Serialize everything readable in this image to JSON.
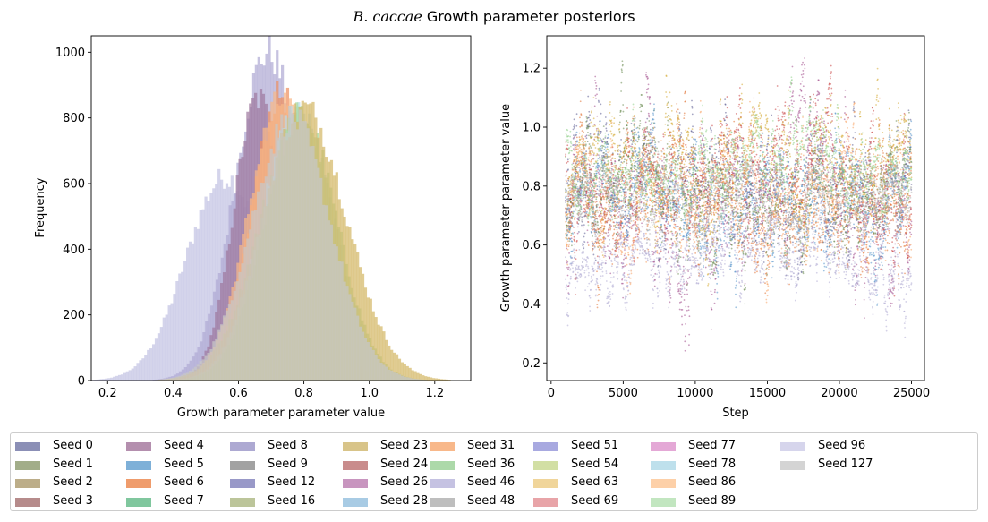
{
  "figure": {
    "title_italic": "B. caccae",
    "title_rest": " Growth parameter posteriors"
  },
  "chart_data": [
    {
      "type": "histogram",
      "xlabel": "Growth parameter parameter value",
      "ylabel": "Frequency",
      "xlim": [
        0.15,
        1.31
      ],
      "ylim": [
        0,
        1050
      ],
      "xticks": [
        "0.2",
        "0.4",
        "0.6",
        "0.8",
        "1.0",
        "1.2"
      ],
      "yticks": [
        "0",
        "200",
        "400",
        "600",
        "800",
        "1000"
      ],
      "grid": false,
      "series": [
        {
          "seed": "Seed 96",
          "color": "#c3c3e3",
          "mean": 0.56,
          "sd": 0.12,
          "peak": 620
        },
        {
          "seed": "Seed 46",
          "color": "#b0abd4",
          "mean": 0.69,
          "sd": 0.1,
          "peak": 1000
        },
        {
          "seed": "Seed 4",
          "color": "#a07aa0",
          "mean": 0.66,
          "sd": 0.075,
          "peak": 860
        },
        {
          "seed": "Seed 6",
          "color": "#ee9060",
          "mean": 0.73,
          "sd": 0.09,
          "peak": 870
        },
        {
          "seed": "Seed 31",
          "color": "#f8b888",
          "mean": 0.73,
          "sd": 0.1,
          "peak": 850
        },
        {
          "seed": "Seed 78",
          "color": "#b8dcea",
          "mean": 0.78,
          "sd": 0.11,
          "peak": 820
        },
        {
          "seed": "Seed 36",
          "color": "#a4d8a0",
          "mean": 0.79,
          "sd": 0.11,
          "peak": 810
        },
        {
          "seed": "Seed 23",
          "color": "#d4b868",
          "mean": 0.8,
          "sd": 0.13,
          "peak": 830
        },
        {
          "seed": "Seed 127",
          "color": "#c8c8c8",
          "mean": 0.76,
          "sd": 0.12,
          "peak": 800
        }
      ]
    },
    {
      "type": "scatter",
      "xlabel": "Step",
      "ylabel": "Growth parameter parameter value",
      "xlim": [
        -300,
        25900
      ],
      "ylim": [
        0.14,
        1.31
      ],
      "xticks": [
        "0",
        "5000",
        "10000",
        "15000",
        "20000",
        "25000"
      ],
      "yticks": [
        "0.2",
        "0.4",
        "0.6",
        "0.8",
        "1.0",
        "1.2"
      ],
      "grid": false,
      "step_range": [
        1000,
        25000
      ],
      "series": [
        {
          "seed": "Seed 0",
          "color": "#5a5a90",
          "mean": 0.78,
          "sd": 0.12
        },
        {
          "seed": "Seed 4",
          "color": "#a04a8a",
          "mean": 0.72,
          "sd": 0.15
        },
        {
          "seed": "Seed 24",
          "color": "#c84040",
          "mean": 0.82,
          "sd": 0.13
        },
        {
          "seed": "Seed 63",
          "color": "#d4a830",
          "mean": 0.85,
          "sd": 0.12
        },
        {
          "seed": "Seed 6",
          "color": "#e07030",
          "mean": 0.75,
          "sd": 0.13
        },
        {
          "seed": "Seed 1",
          "color": "#6a8a50",
          "mean": 0.76,
          "sd": 0.12
        },
        {
          "seed": "Seed 5",
          "color": "#5090c8",
          "mean": 0.75,
          "sd": 0.11
        },
        {
          "seed": "Seed 31",
          "color": "#f8a060",
          "mean": 0.74,
          "sd": 0.12
        },
        {
          "seed": "Seed 36",
          "color": "#90d088",
          "mean": 0.86,
          "sd": 0.08
        },
        {
          "seed": "Seed 46",
          "color": "#b0abd4",
          "mean": 0.55,
          "sd": 0.08
        },
        {
          "seed": "Seed 48",
          "color": "#b4b4b4",
          "mean": 0.76,
          "sd": 0.07
        }
      ]
    }
  ],
  "legend": {
    "columns": 9,
    "items": [
      {
        "label": "Seed 0",
        "color": "#8b8fb6"
      },
      {
        "label": "Seed 1",
        "color": "#a2ad89"
      },
      {
        "label": "Seed 2",
        "color": "#bcad89"
      },
      {
        "label": "Seed 3",
        "color": "#b68b8b"
      },
      {
        "label": "Seed 4",
        "color": "#b48fae"
      },
      {
        "label": "Seed 5",
        "color": "#7eb0d8"
      },
      {
        "label": "Seed 6",
        "color": "#ef9c6c"
      },
      {
        "label": "Seed 7",
        "color": "#80c79e"
      },
      {
        "label": "Seed 8",
        "color": "#ada9d2"
      },
      {
        "label": "Seed 9",
        "color": "#a2a2a2"
      },
      {
        "label": "Seed 12",
        "color": "#9999c8"
      },
      {
        "label": "Seed 16",
        "color": "#bcc59a"
      },
      {
        "label": "Seed 23",
        "color": "#d8c489"
      },
      {
        "label": "Seed 24",
        "color": "#c98c8c"
      },
      {
        "label": "Seed 26",
        "color": "#c895bf"
      },
      {
        "label": "Seed 28",
        "color": "#a8cbe4"
      },
      {
        "label": "Seed 31",
        "color": "#f8b88a"
      },
      {
        "label": "Seed 36",
        "color": "#acd9a9"
      },
      {
        "label": "Seed 46",
        "color": "#c5c2e2"
      },
      {
        "label": "Seed 48",
        "color": "#bebebe"
      },
      {
        "label": "Seed 51",
        "color": "#a8a9e0"
      },
      {
        "label": "Seed 54",
        "color": "#d2dfa4"
      },
      {
        "label": "Seed 63",
        "color": "#f0d59a"
      },
      {
        "label": "Seed 69",
        "color": "#e8a4a8"
      },
      {
        "label": "Seed 77",
        "color": "#e4a8d6"
      },
      {
        "label": "Seed 78",
        "color": "#bee0ec"
      },
      {
        "label": "Seed 86",
        "color": "#fdd0a8"
      },
      {
        "label": "Seed 89",
        "color": "#c2e6c0"
      },
      {
        "label": "Seed 96",
        "color": "#d6d5ec"
      },
      {
        "label": "Seed 127",
        "color": "#d4d4d4"
      }
    ]
  }
}
